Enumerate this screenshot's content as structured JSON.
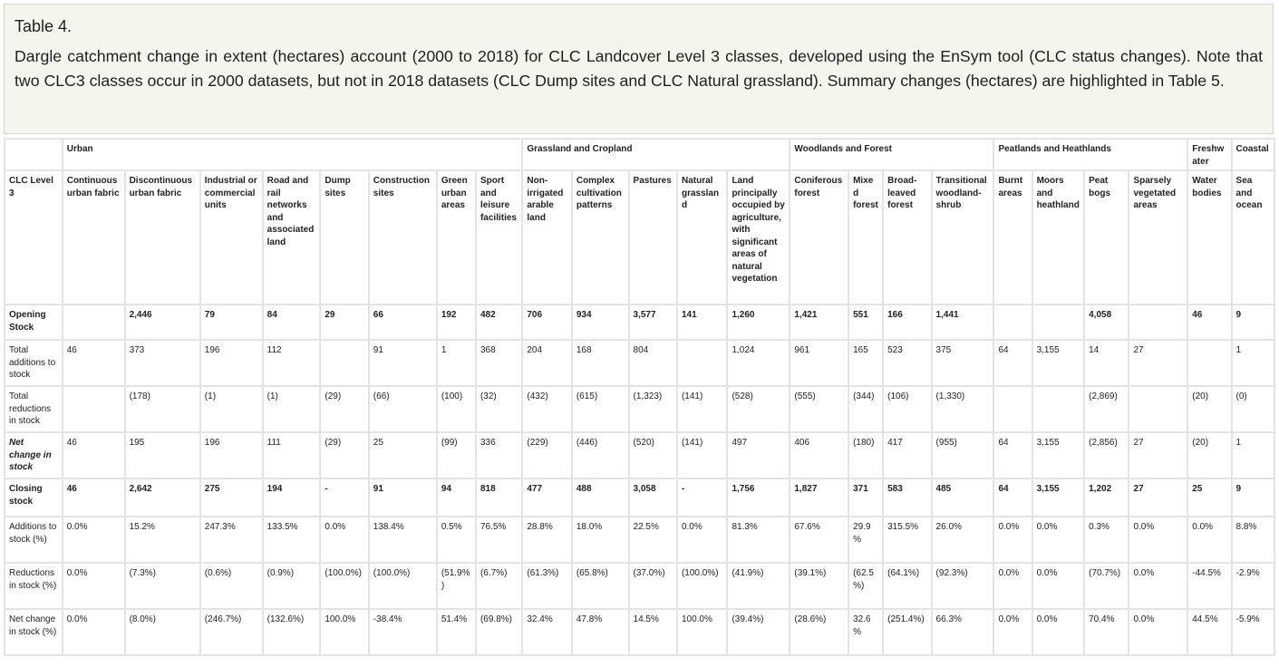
{
  "caption": {
    "title": "Table 4.",
    "text": "Dargle catchment change in extent (hectares) account (2000 to 2018) for CLC Landcover Level 3 classes, developed using the EnSym tool (CLC status changes). Note that two CLC3 classes occur in 2000 datasets, but not in 2018 datasets (CLC Dump sites and CLC Natural grassland). Summary changes (hectares) are highlighted in Table 5."
  },
  "table": {
    "groups": {
      "blank": "",
      "urban": "Urban",
      "grassland": "Grassland and Cropland",
      "woodlands": "Woodlands and Forest",
      "peatlands": "Peatlands and Heathlands",
      "freshwater": "Freshwater",
      "coastal": "Coastal"
    },
    "row_header": "CLC Level 3",
    "classes": [
      "Continuous urban fabric",
      "Discontinuous urban fabric",
      "Industrial or commercial units",
      "Road and rail networks and associated land",
      "Dump sites",
      "Construction sites",
      "Green urban areas",
      "Sport and leisure facilities",
      "Non-irrigated arable land",
      "Complex cultivation patterns",
      "Pastures",
      "Natural grassland",
      "Land principally occupied by agriculture, with significant areas of natural vegetation",
      "Coniferous forest",
      "Mixed forest",
      "Broad-leaved forest",
      "Transitional woodland-shrub",
      "Burnt areas",
      "Moors and heathland",
      "Peat bogs",
      "Sparsely vegetated areas",
      "Water bodies",
      "Sea and ocean"
    ],
    "rows": [
      {
        "label": "Opening Stock",
        "style": "bold",
        "height": "h38",
        "values": [
          "",
          "2,446",
          "79",
          "84",
          "29",
          "66",
          "192",
          "482",
          "706",
          "934",
          "3,577",
          "141",
          "1,260",
          "1,421",
          "551",
          "166",
          "1,441",
          "",
          "",
          "4,058",
          "",
          "46",
          "9"
        ]
      },
      {
        "label": "Total additions to stock",
        "style": "",
        "height": "h46",
        "values": [
          "46",
          "373",
          "196",
          "112",
          "",
          "91",
          "1",
          "368",
          "204",
          "168",
          "804",
          "",
          "1,024",
          "961",
          "165",
          "523",
          "375",
          "64",
          "3,155",
          "14",
          "27",
          "",
          "1"
        ]
      },
      {
        "label": "Total reductions in stock",
        "style": "",
        "height": "h46",
        "values": [
          "",
          "(178)",
          "(1)",
          "(1)",
          "(29)",
          "(66)",
          "(100)",
          "(32)",
          "(432)",
          "(615)",
          "(1,323)",
          "(141)",
          "(528)",
          "(555)",
          "(344)",
          "(106)",
          "(1,330)",
          "",
          "",
          "(2,869)",
          "",
          "(20)",
          "(0)"
        ]
      },
      {
        "label": "Net change in stock",
        "style": "bi",
        "height": "h46",
        "values": [
          "46",
          "195",
          "196",
          "111",
          "(29)",
          "25",
          "(99)",
          "336",
          "(229)",
          "(446)",
          "(520)",
          "(141)",
          "497",
          "406",
          "(180)",
          "417",
          "(955)",
          "64",
          "3,155",
          "(2,856)",
          "27",
          "(20)",
          "1"
        ]
      },
      {
        "label": "Closing stock",
        "style": "bold",
        "height": "h40",
        "values": [
          "46",
          "2,642",
          "275",
          "194",
          "-",
          "91",
          "94",
          "818",
          "477",
          "488",
          "3,058",
          "-",
          "1,756",
          "1,827",
          "371",
          "583",
          "485",
          "64",
          "3,155",
          "1,202",
          "27",
          "25",
          "9"
        ]
      },
      {
        "label": "Additions to stock (%)",
        "style": "",
        "height": "h46",
        "values": [
          "0.0%",
          "15.2%",
          "247.3%",
          "133.5%",
          "0.0%",
          "138.4%",
          "0.5%",
          "76.5%",
          "28.8%",
          "18.0%",
          "22.5%",
          "0.0%",
          "81.3%",
          "67.6%",
          "29.9%",
          "315.5%",
          "26.0%",
          "0.0%",
          "0.0%",
          "0.3%",
          "0.0%",
          "0.0%",
          "8.8%"
        ]
      },
      {
        "label": "Reductions in stock (%)",
        "style": "",
        "height": "h46",
        "values": [
          "0.0%",
          "(7.3%)",
          "(0.6%)",
          "(0.9%)",
          "(100.0%)",
          "(100.0%)",
          "(51.9%)",
          "(6.7%)",
          "(61.3%)",
          "(65.8%)",
          "(37.0%)",
          "(100.0%)",
          "(41.9%)",
          "(39.1%)",
          "(62.5%)",
          "(64.1%)",
          "(92.3%)",
          "0.0%",
          "0.0%",
          "(70.7%)",
          "0.0%",
          "-44.5%",
          "-2.9%"
        ]
      },
      {
        "label": "Net change in stock (%)",
        "style": "",
        "height": "h46",
        "values": [
          "0.0%",
          "(8.0%)",
          "(246.7%)",
          "(132.6%)",
          "100.0%",
          "-38.4%",
          "51.4%",
          "(69.8%)",
          "32.4%",
          "47.8%",
          "14.5%",
          "100.0%",
          "(39.4%)",
          "(28.6%)",
          "32.6%",
          "(251.4%)",
          "66.3%",
          "0.0%",
          "0.0%",
          "70.4%",
          "0.0%",
          "44.5%",
          "-5.9%"
        ]
      }
    ]
  }
}
